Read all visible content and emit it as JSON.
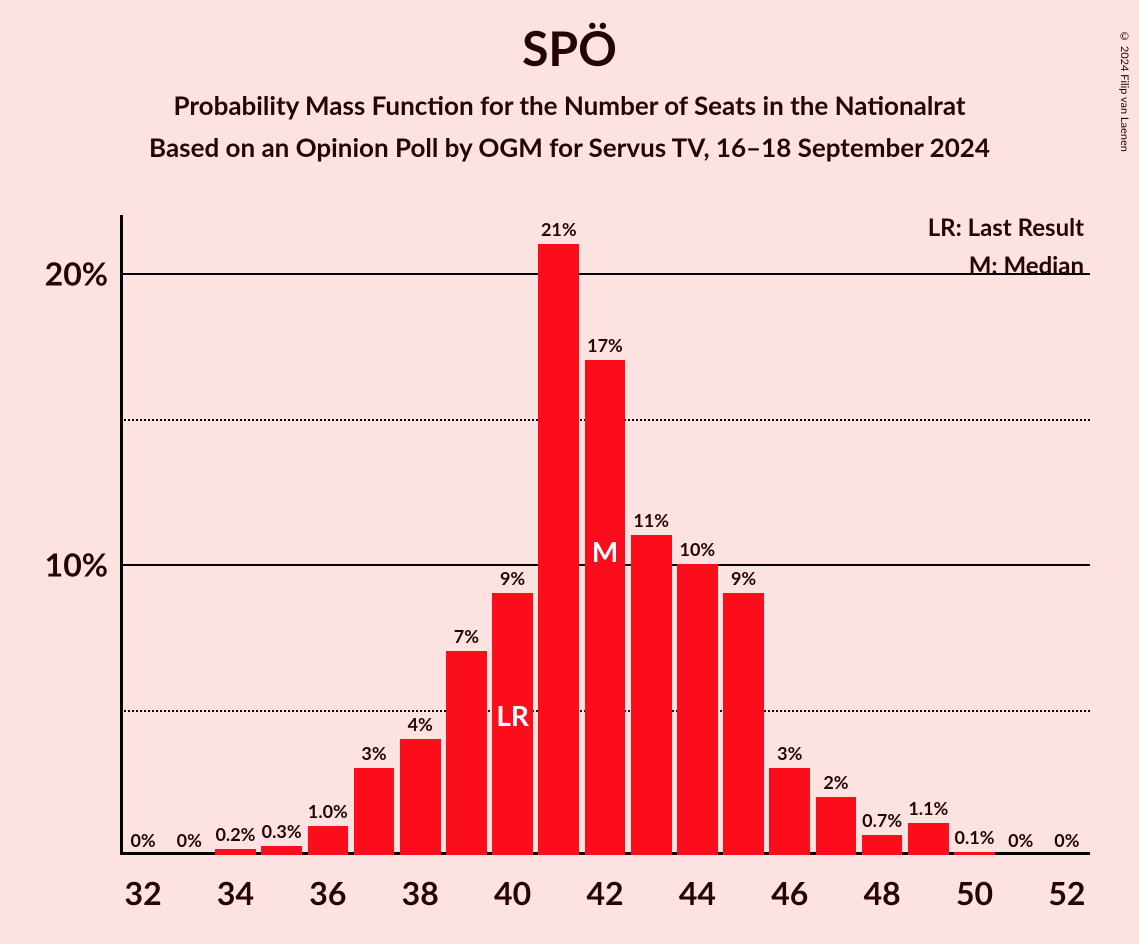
{
  "title": "SPÖ",
  "subtitle1": "Probability Mass Function for the Number of Seats in the Nationalrat",
  "subtitle2": "Based on an Opinion Poll by OGM for Servus TV, 16–18 September 2024",
  "copyright": "© 2024 Filip van Laenen",
  "legend": {
    "lr": "LR: Last Result",
    "m": "M: Median"
  },
  "chart": {
    "type": "bar",
    "background_color": "#fde2e2",
    "bar_color": "#fb0d1c",
    "text_color": "#250404",
    "grid_solid_color": "#000000",
    "grid_dotted_color": "#000000",
    "title_fontsize": 48,
    "subtitle_fontsize": 26,
    "axis_label_fontsize": 32,
    "bar_label_fontsize": 18,
    "legend_fontsize": 24,
    "in_bar_fontsize": 28,
    "ylim": [
      0,
      22
    ],
    "ytick_major": [
      10,
      20
    ],
    "ytick_minor": [
      5,
      15
    ],
    "ytick_labels": {
      "10": "10%",
      "20": "20%"
    },
    "xlim": [
      32,
      52
    ],
    "xtick_step": 2,
    "xtick_labels": [
      "32",
      "34",
      "36",
      "38",
      "40",
      "42",
      "44",
      "46",
      "48",
      "50",
      "52"
    ],
    "bar_width_ratio": 0.88,
    "lr_seat": 40,
    "median_seat": 42,
    "lr_text": "LR",
    "m_text": "M",
    "bars": [
      {
        "x": 32,
        "value": 0,
        "label": "0%"
      },
      {
        "x": 33,
        "value": 0,
        "label": "0%"
      },
      {
        "x": 34,
        "value": 0.2,
        "label": "0.2%"
      },
      {
        "x": 35,
        "value": 0.3,
        "label": "0.3%"
      },
      {
        "x": 36,
        "value": 1.0,
        "label": "1.0%"
      },
      {
        "x": 37,
        "value": 3,
        "label": "3%"
      },
      {
        "x": 38,
        "value": 4,
        "label": "4%"
      },
      {
        "x": 39,
        "value": 7,
        "label": "7%"
      },
      {
        "x": 40,
        "value": 9,
        "label": "9%"
      },
      {
        "x": 41,
        "value": 21,
        "label": "21%"
      },
      {
        "x": 42,
        "value": 17,
        "label": "17%"
      },
      {
        "x": 43,
        "value": 11,
        "label": "11%"
      },
      {
        "x": 44,
        "value": 10,
        "label": "10%"
      },
      {
        "x": 45,
        "value": 9,
        "label": "9%"
      },
      {
        "x": 46,
        "value": 3,
        "label": "3%"
      },
      {
        "x": 47,
        "value": 2,
        "label": "2%"
      },
      {
        "x": 48,
        "value": 0.7,
        "label": "0.7%"
      },
      {
        "x": 49,
        "value": 1.1,
        "label": "1.1%"
      },
      {
        "x": 50,
        "value": 0.1,
        "label": "0.1%"
      },
      {
        "x": 51,
        "value": 0,
        "label": "0%"
      },
      {
        "x": 52,
        "value": 0,
        "label": "0%"
      }
    ]
  }
}
